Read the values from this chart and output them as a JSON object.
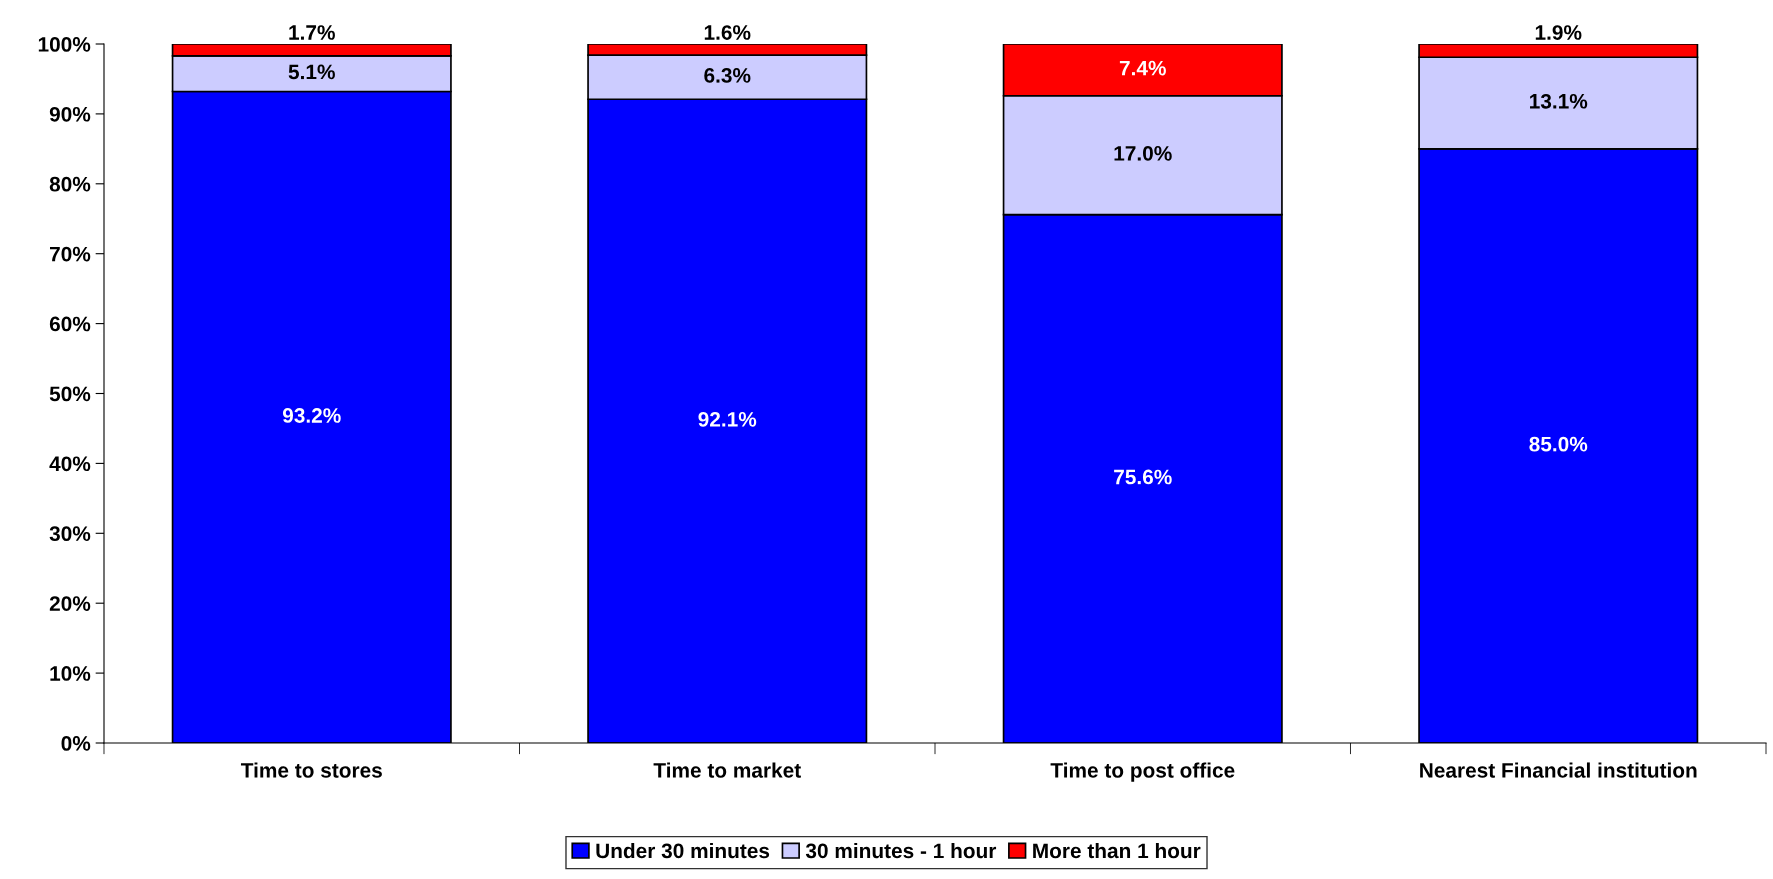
{
  "chart_data": {
    "type": "bar",
    "stacked": true,
    "categories": [
      "Time to stores",
      "Time to market",
      "Time to post office",
      "Nearest Financial institution"
    ],
    "series": [
      {
        "name": "Under 30 minutes",
        "color": "#0000ff",
        "values": [
          93.2,
          92.1,
          75.6,
          85.0
        ],
        "value_labels": [
          "93.2%",
          "92.1%",
          "75.6%",
          "85.0%"
        ]
      },
      {
        "name": "30 minutes - 1 hour",
        "color": "#ccccff",
        "values": [
          5.1,
          6.3,
          17.0,
          13.1
        ],
        "value_labels": [
          "5.1%",
          "6.3%",
          "17.0%",
          "13.1%"
        ]
      },
      {
        "name": "More than 1 hour",
        "color": "#ff0000",
        "values": [
          1.7,
          1.6,
          7.4,
          1.9
        ],
        "value_labels": [
          "1.7%",
          "1.6%",
          "7.4%",
          "1.9%"
        ]
      }
    ],
    "ylim": [
      0,
      100
    ],
    "yticks": [
      {
        "value": 0,
        "label": "0%"
      },
      {
        "value": 10,
        "label": "10%"
      },
      {
        "value": 20,
        "label": "20%"
      },
      {
        "value": 30,
        "label": "30%"
      },
      {
        "value": 40,
        "label": "40%"
      },
      {
        "value": 50,
        "label": "50%"
      },
      {
        "value": 60,
        "label": "60%"
      },
      {
        "value": 70,
        "label": "70%"
      },
      {
        "value": 80,
        "label": "80%"
      },
      {
        "value": 90,
        "label": "90%"
      },
      {
        "value": 100,
        "label": "100%"
      }
    ],
    "grid": false,
    "legend": "bottom"
  }
}
